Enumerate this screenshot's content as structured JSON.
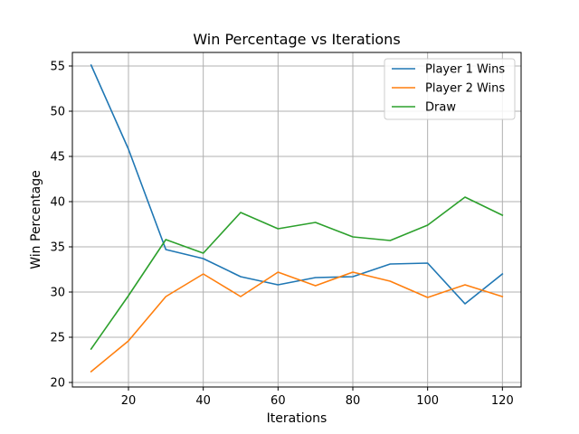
{
  "chart_data": {
    "type": "line",
    "title": "Win Percentage vs Iterations",
    "xlabel": "Iterations",
    "ylabel": "Win Percentage",
    "xlim": [
      5,
      125
    ],
    "ylim": [
      19.5,
      56.5
    ],
    "xticks": [
      20,
      40,
      60,
      80,
      100,
      120
    ],
    "yticks": [
      20,
      25,
      30,
      35,
      40,
      45,
      50,
      55
    ],
    "grid": true,
    "legend_position": "top-right",
    "x": [
      10,
      20,
      30,
      40,
      50,
      60,
      70,
      80,
      90,
      100,
      110,
      120
    ],
    "series": [
      {
        "name": "Player 1 Wins",
        "color": "#1f77b4",
        "values": [
          55.1,
          45.8,
          34.7,
          33.7,
          31.7,
          30.8,
          31.6,
          31.7,
          33.1,
          33.2,
          28.7,
          32.0
        ]
      },
      {
        "name": "Player 2 Wins",
        "color": "#ff7f0e",
        "values": [
          21.2,
          24.6,
          29.5,
          32.0,
          29.5,
          32.2,
          30.7,
          32.2,
          31.2,
          29.4,
          30.8,
          29.5
        ]
      },
      {
        "name": "Draw",
        "color": "#2ca02c",
        "values": [
          23.7,
          29.6,
          35.8,
          34.3,
          38.8,
          37.0,
          37.7,
          36.1,
          35.7,
          37.4,
          40.5,
          38.5
        ]
      }
    ]
  }
}
